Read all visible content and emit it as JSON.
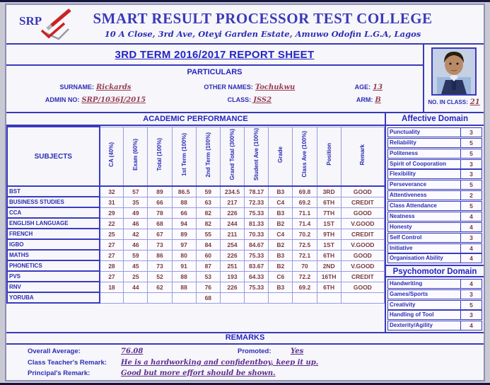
{
  "colors": {
    "border_blue": "#3a3ab8",
    "label_blue": "#2d2db4",
    "value_maroon": "#7a3a3a",
    "handwriting_red": "#973f52",
    "handwriting_purple": "#5e2d8e",
    "logo_red": "#cc2222"
  },
  "header": {
    "logo_text": "SRP",
    "school_name": "SMART RESULT PROCESSOR TEST COLLEGE",
    "address": "10 A Close, 3rd Ave, Oteyi Garden Estate, Amuwo Odofin L.G.A, Lagos",
    "report_title": "3RD TERM 2016/2017 REPORT SHEET"
  },
  "particulars": {
    "section_title": "PARTICULARS",
    "surname_label": "SURNAME:",
    "surname": "Rickards",
    "other_names_label": "OTHER NAMES:",
    "other_names": "Tochukwu",
    "age_label": "AGE:",
    "age": "13",
    "admin_no_label": "ADMIN NO:",
    "admin_no": "SRP/1036J/2015",
    "class_label": "CLASS:",
    "class": "JSS2",
    "arm_label": "ARM:",
    "arm": "B",
    "no_in_class_label": "NO. IN CLASS:",
    "no_in_class": "21"
  },
  "academic": {
    "section_title": "ACADEMIC PERFORMANCE",
    "columns": [
      "SUBJECTS",
      "CA (40%)",
      "Exam (60%)",
      "Total (100%)",
      "1st Term (100%)",
      "2nd Term (100%)",
      "Grand Total (300%)",
      "Student Ave (100%)",
      "Grade",
      "Class Ave (100%)",
      "Position",
      "Remark"
    ],
    "rows": [
      {
        "subject": "BST",
        "ca": "32",
        "exam": "57",
        "total": "89",
        "t1": "86.5",
        "t2": "59",
        "grand": "234.5",
        "avg": "78.17",
        "grade": "B3",
        "class_ave": "69.8",
        "position": "3RD",
        "remark": "GOOD"
      },
      {
        "subject": "BUSINESS STUDIES",
        "ca": "31",
        "exam": "35",
        "total": "66",
        "t1": "88",
        "t2": "63",
        "grand": "217",
        "avg": "72.33",
        "grade": "C4",
        "class_ave": "69.2",
        "position": "6TH",
        "remark": "CREDIT"
      },
      {
        "subject": "CCA",
        "ca": "29",
        "exam": "49",
        "total": "78",
        "t1": "66",
        "t2": "82",
        "grand": "226",
        "avg": "75.33",
        "grade": "B3",
        "class_ave": "71.1",
        "position": "7TH",
        "remark": "GOOD"
      },
      {
        "subject": "ENGLISH LANGUAGE",
        "ca": "22",
        "exam": "46",
        "total": "68",
        "t1": "94",
        "t2": "82",
        "grand": "244",
        "avg": "81.33",
        "grade": "B2",
        "class_ave": "71.4",
        "position": "1ST",
        "remark": "V.GOOD"
      },
      {
        "subject": "FRENCH",
        "ca": "25",
        "exam": "42",
        "total": "67",
        "t1": "89",
        "t2": "55",
        "grand": "211",
        "avg": "70.33",
        "grade": "C4",
        "class_ave": "70.2",
        "position": "9TH",
        "remark": "CREDIT"
      },
      {
        "subject": "IGBO",
        "ca": "27",
        "exam": "46",
        "total": "73",
        "t1": "97",
        "t2": "84",
        "grand": "254",
        "avg": "84.67",
        "grade": "B2",
        "class_ave": "72.5",
        "position": "1ST",
        "remark": "V.GOOD"
      },
      {
        "subject": "MATHS",
        "ca": "27",
        "exam": "59",
        "total": "86",
        "t1": "80",
        "t2": "60",
        "grand": "226",
        "avg": "75.33",
        "grade": "B3",
        "class_ave": "72.1",
        "position": "6TH",
        "remark": "GOOD"
      },
      {
        "subject": "PHONETICS",
        "ca": "28",
        "exam": "45",
        "total": "73",
        "t1": "91",
        "t2": "87",
        "grand": "251",
        "avg": "83.67",
        "grade": "B2",
        "class_ave": "70",
        "position": "2ND",
        "remark": "V.GOOD"
      },
      {
        "subject": "PVS",
        "ca": "27",
        "exam": "25",
        "total": "52",
        "t1": "88",
        "t2": "53",
        "grand": "193",
        "avg": "64.33",
        "grade": "C6",
        "class_ave": "72.2",
        "position": "16TH",
        "remark": "CREDIT"
      },
      {
        "subject": "RNV",
        "ca": "18",
        "exam": "44",
        "total": "62",
        "t1": "88",
        "t2": "76",
        "grand": "226",
        "avg": "75.33",
        "grade": "B3",
        "class_ave": "69.2",
        "position": "6TH",
        "remark": "GOOD"
      },
      {
        "subject": "YORUBA",
        "ca": "",
        "exam": "",
        "total": "",
        "t1": "",
        "t2": "68",
        "grand": "",
        "avg": "",
        "grade": "",
        "class_ave": "",
        "position": "",
        "remark": ""
      }
    ]
  },
  "affective": {
    "title": "Affective Domain",
    "items": [
      {
        "label": "Punctuality",
        "score": "3"
      },
      {
        "label": "Reliability",
        "score": "5"
      },
      {
        "label": "Politeness",
        "score": "5"
      },
      {
        "label": "Spirit of Cooporation",
        "score": "3"
      },
      {
        "label": "Flexibility",
        "score": "3"
      },
      {
        "label": "Perseverance",
        "score": "5"
      },
      {
        "label": "Attentiveness",
        "score": "2"
      },
      {
        "label": "Class Attendance",
        "score": "5"
      },
      {
        "label": "Neatness",
        "score": "4"
      },
      {
        "label": "Honesty",
        "score": "4"
      },
      {
        "label": "Self Control",
        "score": "3"
      },
      {
        "label": "Initiative",
        "score": "4"
      },
      {
        "label": "Organisation Ability",
        "score": "4"
      }
    ]
  },
  "psychomotor": {
    "title": "Psychomotor Domain",
    "items": [
      {
        "label": "Handwriting",
        "score": "4"
      },
      {
        "label": "Games/Sports",
        "score": "3"
      },
      {
        "label": "Creativity",
        "score": "5"
      },
      {
        "label": "Handling of Tool",
        "score": "3"
      },
      {
        "label": "Dexterity/Agility",
        "score": "4"
      }
    ]
  },
  "remarks": {
    "section_title": "REMARKS",
    "overall_average_label": "Overall Average:",
    "overall_average": "76.08",
    "promoted_label": "Promoted:",
    "promoted": "Yes",
    "teacher_label": "Class Teacher's Remark:",
    "teacher_remark": "He is a hardworking and confidentboy, keep it up.",
    "principal_label": "Principal's Remark:",
    "principal_remark": "Good but more effort should be shown."
  }
}
